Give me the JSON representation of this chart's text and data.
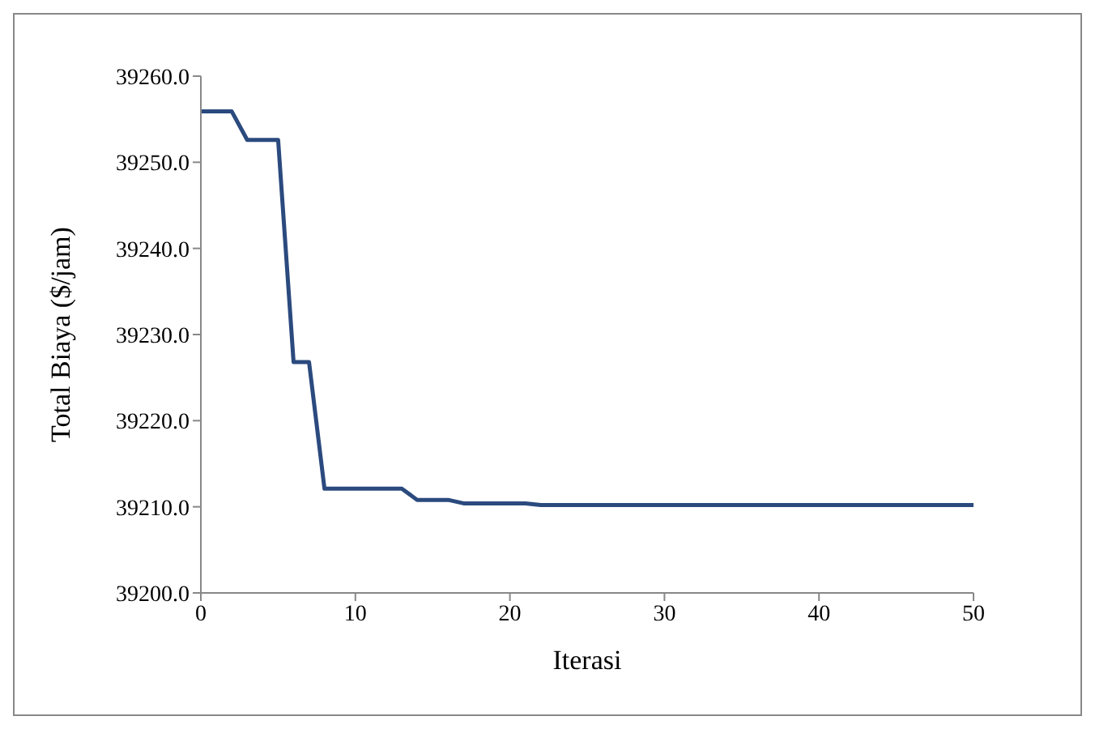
{
  "chart_data": {
    "type": "line",
    "xlabel": "Iterasi",
    "ylabel": "Total Biaya ($/jam)",
    "x": [
      0,
      2,
      3,
      5,
      6,
      7,
      8,
      13,
      14,
      16,
      17,
      21,
      22,
      50
    ],
    "series": [
      {
        "color": "#2b4a7e",
        "values": [
          39255.9,
          39255.9,
          39252.6,
          39252.6,
          39226.8,
          39226.8,
          39212.1,
          39212.1,
          39210.8,
          39210.8,
          39210.4,
          39210.4,
          39210.2,
          39210.2
        ]
      }
    ],
    "xlim": [
      0,
      50
    ],
    "xticks": [
      0,
      10,
      20,
      30,
      40,
      50
    ],
    "ylim": [
      39200,
      39260
    ],
    "yticks": [
      {
        "value": 39200,
        "label": "39200.0"
      },
      {
        "value": 39210,
        "label": "39210.0"
      },
      {
        "value": 39220,
        "label": "39220.0"
      },
      {
        "value": 39230,
        "label": "39230.0"
      },
      {
        "value": 39240,
        "label": "39240.0"
      },
      {
        "value": 39250,
        "label": "39250.0"
      },
      {
        "value": 39260,
        "label": "39260.0"
      }
    ],
    "grid": false,
    "marker": "none",
    "line_style": "solid"
  }
}
